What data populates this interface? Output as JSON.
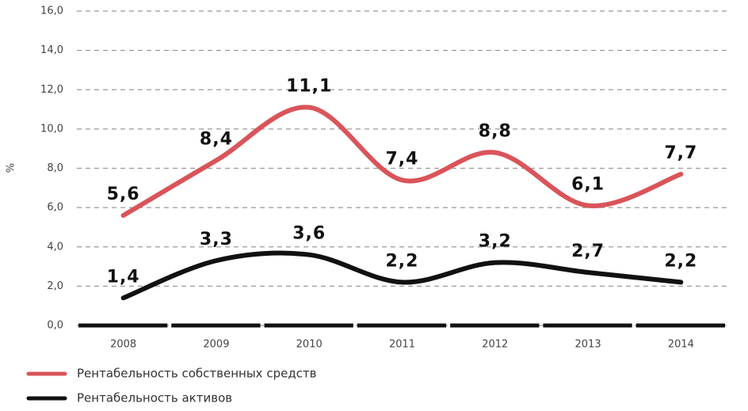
{
  "chart_data": {
    "type": "line",
    "y_label": "%",
    "categories": [
      "2008",
      "2009",
      "2010",
      "2011",
      "2012",
      "2013",
      "2014"
    ],
    "series": [
      {
        "name": "Рентабельность собственных средств",
        "color": "#d9545a",
        "values": [
          5.6,
          8.4,
          11.1,
          7.4,
          8.8,
          6.1,
          7.7
        ],
        "value_labels": [
          "5,6",
          "8,4",
          "11,1",
          "7,4",
          "8,8",
          "6,1",
          "7,7"
        ]
      },
      {
        "name": "Рентабельность активов",
        "color": "#111111",
        "values": [
          1.4,
          3.3,
          3.6,
          2.2,
          3.2,
          2.7,
          2.2
        ],
        "value_labels": [
          "1,4",
          "3,3",
          "3,6",
          "2,2",
          "3,2",
          "2,7",
          "2,2"
        ]
      }
    ],
    "ylim": [
      0,
      16
    ],
    "yticks": [
      {
        "value": 0,
        "label": "0,0"
      },
      {
        "value": 2,
        "label": "2,0"
      },
      {
        "value": 4,
        "label": "4,0"
      },
      {
        "value": 6,
        "label": "6,0"
      },
      {
        "value": 8,
        "label": "8,0"
      },
      {
        "value": 10,
        "label": "10,0"
      },
      {
        "value": 12,
        "label": "12,0"
      },
      {
        "value": 14,
        "label": "14,0"
      },
      {
        "value": 16,
        "label": "16,0"
      }
    ],
    "grid": true
  }
}
